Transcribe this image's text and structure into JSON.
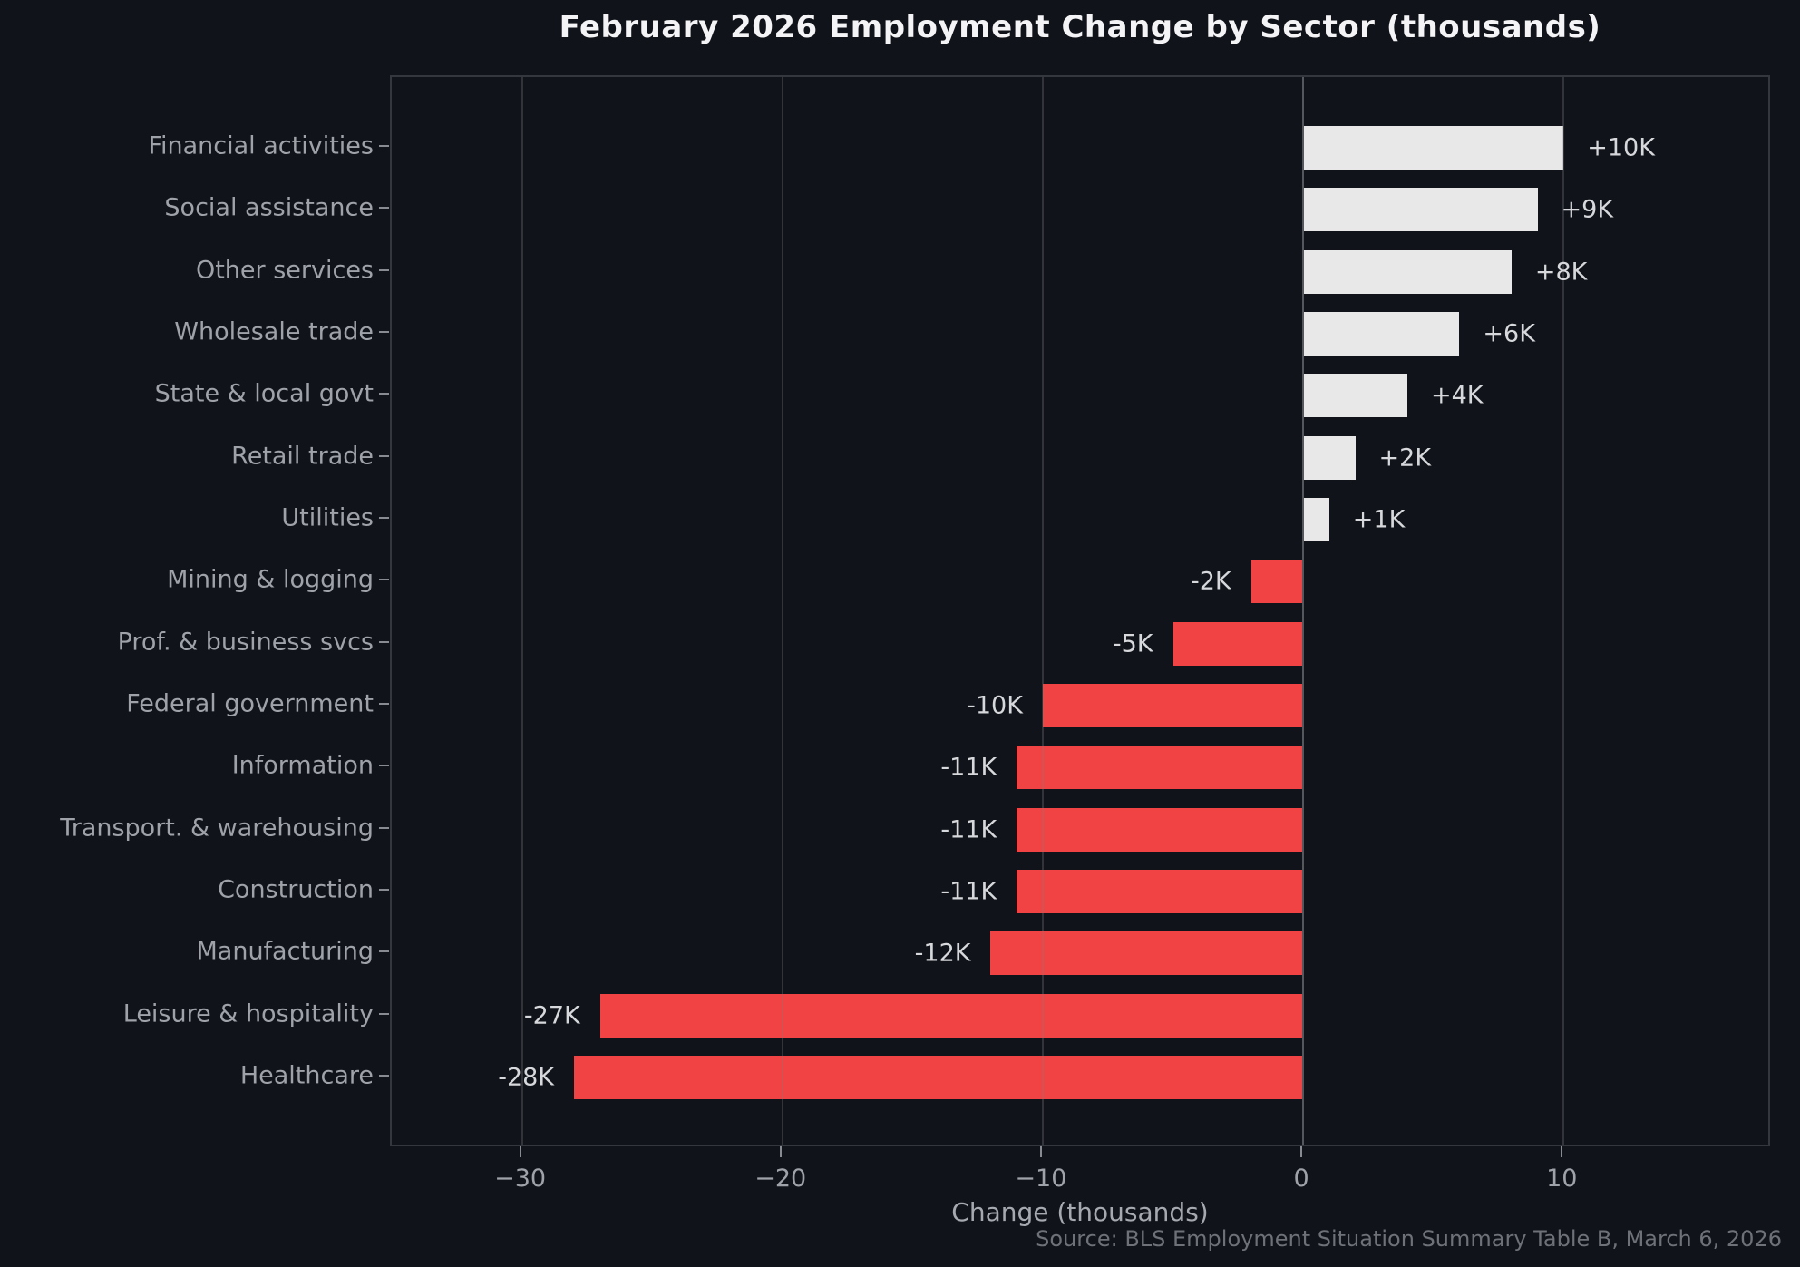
{
  "header": {
    "title": "February 2026 Employment Change by Sector (thousands)"
  },
  "chart_data": {
    "type": "bar",
    "orientation": "horizontal",
    "title": "February 2026 Employment Change by Sector (thousands)",
    "xlabel": "Change (thousands)",
    "ylabel": "",
    "categories": [
      "Financial activities",
      "Social assistance",
      "Other services",
      "Wholesale trade",
      "State & local govt",
      "Retail trade",
      "Utilities",
      "Mining & logging",
      "Prof. & business svcs",
      "Federal government",
      "Information",
      "Transport. & warehousing",
      "Construction",
      "Manufacturing",
      "Leisure & hospitality",
      "Healthcare"
    ],
    "values": [
      10,
      9,
      8,
      6,
      4,
      2,
      1,
      -2,
      -5,
      -10,
      -11,
      -11,
      -11,
      -12,
      -27,
      -28
    ],
    "bar_labels": [
      "+10K",
      "+9K",
      "+8K",
      "+6K",
      "+4K",
      "+2K",
      "+1K",
      "-2K",
      "-5K",
      "-10K",
      "-11K",
      "-11K",
      "-11K",
      "-12K",
      "-27K",
      "-28K"
    ],
    "xlim": [
      -35,
      18
    ],
    "xticks": [
      -30,
      -20,
      -10,
      0,
      10
    ],
    "xtick_labels": [
      "−30",
      "−20",
      "−10",
      "0",
      "10"
    ],
    "grid": true,
    "legend": false,
    "colors": {
      "background": "#10131a",
      "positive_bar": "#e8e8e9",
      "negative_bar": "#f14343",
      "grid": "rgba(128,128,128,0.30)",
      "zero_line": "#54575c",
      "tick_text": "#9fa2a8",
      "value_text": "#d6d8db",
      "title_text": "#f4f4f6",
      "source_text": "#6e7178"
    },
    "source_note": "Source: BLS Employment Situation Summary Table B, March 6, 2026"
  }
}
